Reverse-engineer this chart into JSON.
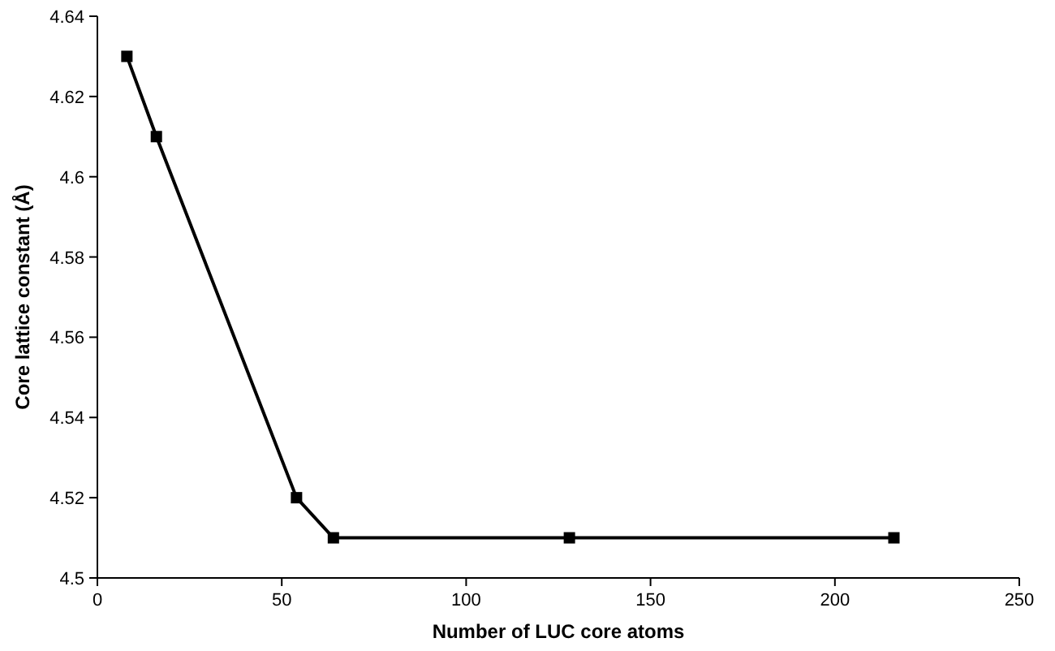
{
  "chart_data": {
    "type": "line",
    "xlabel": "Number of LUC core atoms",
    "ylabel": "Core lattice constant (Å)",
    "x": [
      8,
      16,
      54,
      64,
      128,
      216
    ],
    "series": [
      {
        "color": "#000000",
        "values": [
          4.63,
          4.61,
          4.52,
          4.51,
          4.51,
          4.51
        ]
      }
    ],
    "xlim": [
      0,
      250
    ],
    "xticks": [
      0,
      50,
      100,
      150,
      200,
      250
    ],
    "ylim": [
      4.5,
      4.64
    ],
    "yticks": [
      4.5,
      4.52,
      4.54,
      4.56,
      4.58,
      4.6,
      4.62,
      4.64
    ],
    "grid": false,
    "marker": "square",
    "line_style": "solid"
  }
}
